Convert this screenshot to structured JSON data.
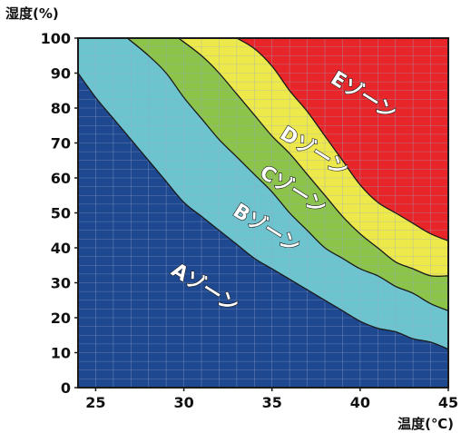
{
  "chart_data": {
    "type": "area",
    "title": "",
    "xlabel": "温度(℃)",
    "ylabel": "湿度(%)",
    "xlim": [
      24,
      45
    ],
    "ylim": [
      0,
      100
    ],
    "xticks": [
      25,
      30,
      35,
      40,
      45
    ],
    "yticks": [
      0,
      10,
      20,
      30,
      40,
      50,
      60,
      70,
      80,
      90,
      100
    ],
    "grid": true,
    "colors": {
      "A": "#1e4890",
      "B": "#6cc4cf",
      "C": "#8cc44a",
      "D": "#eee94b",
      "E": "#e8262a",
      "boundary": "#1a1a1a",
      "grid": "#9aa8c8"
    },
    "zones": [
      {
        "name": "Aゾーン",
        "label": "Aゾーン"
      },
      {
        "name": "Bゾーン",
        "label": "Bゾーン"
      },
      {
        "name": "Cゾーン",
        "label": "Cゾーン"
      },
      {
        "name": "Dゾーン",
        "label": "Dゾーン"
      },
      {
        "name": "Eゾーン",
        "label": "Eゾーン"
      }
    ],
    "boundaries": [
      {
        "between": "A-B",
        "points": [
          [
            24,
            90
          ],
          [
            25,
            83
          ],
          [
            26,
            77
          ],
          [
            27,
            71
          ],
          [
            28,
            65
          ],
          [
            29,
            59
          ],
          [
            30,
            53
          ],
          [
            31,
            49
          ],
          [
            32,
            45
          ],
          [
            33,
            41
          ],
          [
            34,
            37
          ],
          [
            35,
            34
          ],
          [
            36,
            31
          ],
          [
            37,
            28
          ],
          [
            38,
            25
          ],
          [
            39,
            22
          ],
          [
            40,
            19
          ],
          [
            41,
            17
          ],
          [
            42,
            16
          ],
          [
            43,
            14
          ],
          [
            44,
            13
          ],
          [
            45,
            11
          ]
        ]
      },
      {
        "between": "B-C",
        "points": [
          [
            26.8,
            100
          ],
          [
            28,
            95
          ],
          [
            29,
            90
          ],
          [
            30,
            83
          ],
          [
            31,
            77
          ],
          [
            32,
            71
          ],
          [
            33,
            66
          ],
          [
            34,
            61
          ],
          [
            35,
            56
          ],
          [
            36,
            50
          ],
          [
            37,
            45
          ],
          [
            38,
            40
          ],
          [
            39,
            37
          ],
          [
            40,
            34
          ],
          [
            41,
            32
          ],
          [
            42,
            29
          ],
          [
            43,
            27
          ],
          [
            44,
            24
          ],
          [
            45,
            22
          ]
        ]
      },
      {
        "between": "C-D",
        "points": [
          [
            29.7,
            100
          ],
          [
            31,
            95
          ],
          [
            32,
            90
          ],
          [
            33,
            84
          ],
          [
            34,
            78
          ],
          [
            35,
            72
          ],
          [
            36,
            67
          ],
          [
            37,
            61
          ],
          [
            38,
            55
          ],
          [
            39,
            49
          ],
          [
            40,
            44
          ],
          [
            41,
            40
          ],
          [
            42,
            36
          ],
          [
            43,
            34
          ],
          [
            44,
            32
          ],
          [
            45,
            32
          ]
        ]
      },
      {
        "between": "D-E",
        "points": [
          [
            33,
            100
          ],
          [
            34,
            97
          ],
          [
            35,
            92
          ],
          [
            36,
            85
          ],
          [
            37,
            79
          ],
          [
            38,
            72
          ],
          [
            39,
            65
          ],
          [
            40,
            58
          ],
          [
            41,
            53
          ],
          [
            42,
            50
          ],
          [
            43,
            47
          ],
          [
            44,
            44
          ],
          [
            45,
            42
          ]
        ]
      }
    ],
    "annotations": [
      {
        "text": "Eゾーン",
        "x": 40,
        "y": 82
      },
      {
        "text": "Dゾーン",
        "x": 37.2,
        "y": 66
      },
      {
        "text": "Cゾーン",
        "x": 36,
        "y": 55
      },
      {
        "text": "Bゾーン",
        "x": 34.5,
        "y": 44
      },
      {
        "text": "Aゾーン",
        "x": 31,
        "y": 27
      }
    ]
  }
}
